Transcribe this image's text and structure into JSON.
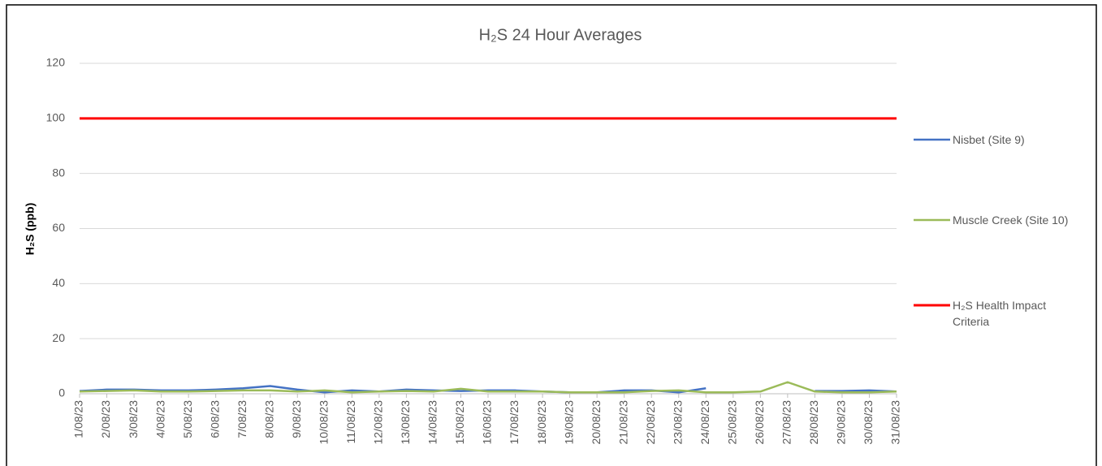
{
  "chart_data": {
    "type": "line",
    "title": "H₂S 24 Hour Averages",
    "y_label": "H₂S (ppb)",
    "categories": [
      "1/08/23",
      "2/08/23",
      "3/08/23",
      "4/08/23",
      "5/08/23",
      "6/08/23",
      "7/08/23",
      "8/08/23",
      "9/08/23",
      "10/08/23",
      "11/08/23",
      "12/08/23",
      "13/08/23",
      "14/08/23",
      "15/08/23",
      "16/08/23",
      "17/08/23",
      "18/08/23",
      "19/08/23",
      "20/08/23",
      "21/08/23",
      "22/08/23",
      "23/08/23",
      "24/08/23",
      "25/08/23",
      "26/08/23",
      "27/08/23",
      "28/08/23",
      "29/08/23",
      "30/08/23",
      "31/08/23"
    ],
    "series": [
      {
        "name": "Nisbet (Site 9)",
        "color": "#4472c4",
        "values": [
          1,
          1.5,
          1.5,
          1.2,
          1.2,
          1.5,
          2,
          2.8,
          1.5,
          0.5,
          1.2,
          0.8,
          1.5,
          1.2,
          1,
          1.2,
          1.2,
          0.8,
          0.5,
          0.5,
          1.2,
          1.2,
          0.5,
          2,
          null,
          null,
          null,
          1,
          1,
          1.2,
          0.8
        ]
      },
      {
        "name": "Muscle Creek (Site 10)",
        "color": "#9bbb59",
        "values": [
          0.8,
          1,
          1.2,
          0.8,
          0.8,
          1,
          1.2,
          1.2,
          0.8,
          1.2,
          0.5,
          0.8,
          1,
          0.8,
          1.8,
          0.8,
          0.8,
          0.8,
          0.5,
          0.5,
          0.5,
          1,
          1.2,
          0.5,
          0.5,
          0.8,
          4.2,
          0.8,
          0.5,
          0.5,
          0.8
        ]
      },
      {
        "name": "H₂S Health Impact Criteria",
        "color": "#ff0000",
        "values": [
          100,
          100,
          100,
          100,
          100,
          100,
          100,
          100,
          100,
          100,
          100,
          100,
          100,
          100,
          100,
          100,
          100,
          100,
          100,
          100,
          100,
          100,
          100,
          100,
          100,
          100,
          100,
          100,
          100,
          100,
          100
        ]
      }
    ],
    "ylim": [
      0,
      120
    ],
    "yticks": [
      0,
      20,
      40,
      60,
      80,
      100,
      120
    ],
    "grid": true
  }
}
